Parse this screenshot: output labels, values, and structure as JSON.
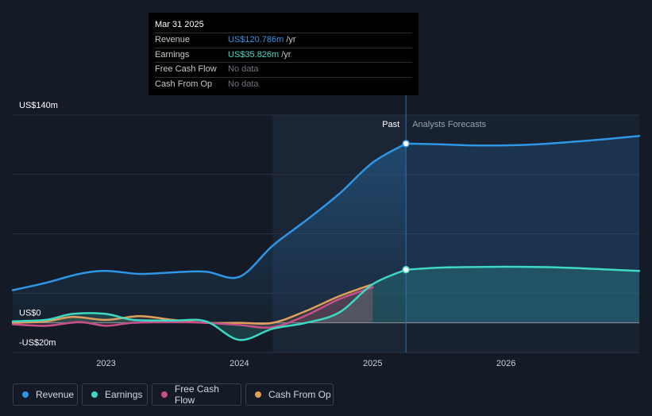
{
  "tooltip": {
    "date": "Mar 31 2025",
    "rows": [
      {
        "label": "Revenue",
        "value": "US$120.786m",
        "unit": "/yr"
      },
      {
        "label": "Earnings",
        "value": "US$35.826m",
        "unit": "/yr"
      },
      {
        "label": "Free Cash Flow",
        "value": "No data"
      },
      {
        "label": "Cash From Op",
        "value": "No data"
      }
    ]
  },
  "labels": {
    "past": "Past",
    "forecast": "Analysts Forecasts"
  },
  "colors": {
    "background": "#151b26",
    "revenue": "#2f96e6",
    "earnings": "#3dd9c5",
    "free_cash_flow": "#c8508a",
    "cash_from_op": "#e0a05a"
  },
  "legend": [
    {
      "label": "Revenue",
      "color": "#2f96e6"
    },
    {
      "label": "Earnings",
      "color": "#3dd9c5"
    },
    {
      "label": "Free Cash Flow",
      "color": "#c8508a"
    },
    {
      "label": "Cash From Op",
      "color": "#e0a05a"
    }
  ],
  "chart_data": {
    "type": "line",
    "y_unit": "US$m",
    "yticks": [
      {
        "value": 140,
        "label": "US$140m"
      },
      {
        "value": 0,
        "label": "US$0"
      },
      {
        "value": -20,
        "label": "-US$20m"
      }
    ],
    "ylim": [
      -20,
      140
    ],
    "xlim": [
      2022.3,
      2027.0
    ],
    "xticks": [
      {
        "value": 2023.0,
        "label": "2023"
      },
      {
        "value": 2024.0,
        "label": "2024"
      },
      {
        "value": 2025.0,
        "label": "2025"
      },
      {
        "value": 2026.0,
        "label": "2026"
      }
    ],
    "past_end": 2025.25,
    "highlight_start": 2024.25,
    "grid": true,
    "series": [
      {
        "name": "Revenue",
        "points": [
          [
            2022.3,
            22
          ],
          [
            2022.55,
            27
          ],
          [
            2022.8,
            33
          ],
          [
            2023.0,
            35
          ],
          [
            2023.25,
            33
          ],
          [
            2023.5,
            34
          ],
          [
            2023.75,
            34.5
          ],
          [
            2024.0,
            31
          ],
          [
            2024.25,
            52
          ],
          [
            2024.5,
            69
          ],
          [
            2024.75,
            87
          ],
          [
            2025.0,
            108
          ],
          [
            2025.25,
            120.786
          ]
        ]
      },
      {
        "name": "Revenue forecast",
        "points": [
          [
            2025.25,
            120.786
          ],
          [
            2025.5,
            120.3
          ],
          [
            2025.75,
            119.6
          ],
          [
            2026.0,
            119.6
          ],
          [
            2026.25,
            120.4
          ],
          [
            2026.5,
            122
          ],
          [
            2026.75,
            123.8
          ],
          [
            2027.0,
            126
          ]
        ]
      },
      {
        "name": "Earnings",
        "points": [
          [
            2022.3,
            1
          ],
          [
            2022.55,
            2
          ],
          [
            2022.75,
            6
          ],
          [
            2023.0,
            6
          ],
          [
            2023.2,
            2
          ],
          [
            2023.5,
            1.5
          ],
          [
            2023.75,
            1
          ],
          [
            2024.0,
            -11.5
          ],
          [
            2024.25,
            -4
          ],
          [
            2024.5,
            0
          ],
          [
            2024.75,
            7
          ],
          [
            2025.0,
            26
          ],
          [
            2025.25,
            35.826
          ]
        ]
      },
      {
        "name": "Earnings forecast",
        "points": [
          [
            2025.25,
            35.826
          ],
          [
            2025.5,
            37.2
          ],
          [
            2025.75,
            37.6
          ],
          [
            2026.0,
            37.8
          ],
          [
            2026.25,
            37.6
          ],
          [
            2026.5,
            37
          ],
          [
            2026.75,
            36
          ],
          [
            2027.0,
            35
          ]
        ]
      },
      {
        "name": "Free Cash Flow",
        "points": [
          [
            2022.3,
            -1
          ],
          [
            2022.55,
            -2
          ],
          [
            2022.8,
            0.5
          ],
          [
            2023.0,
            -2
          ],
          [
            2023.2,
            0
          ],
          [
            2023.5,
            0.5
          ],
          [
            2023.75,
            0
          ],
          [
            2024.0,
            -1.5
          ],
          [
            2024.25,
            -3
          ],
          [
            2024.5,
            5
          ],
          [
            2024.75,
            16
          ],
          [
            2025.0,
            24
          ]
        ]
      },
      {
        "name": "Cash From Op",
        "points": [
          [
            2022.3,
            0
          ],
          [
            2022.55,
            1
          ],
          [
            2022.75,
            4
          ],
          [
            2023.0,
            2
          ],
          [
            2023.25,
            4.5
          ],
          [
            2023.5,
            2
          ],
          [
            2023.75,
            0
          ],
          [
            2024.0,
            0
          ],
          [
            2024.25,
            0
          ],
          [
            2024.5,
            8
          ],
          [
            2024.75,
            18
          ],
          [
            2025.0,
            26
          ]
        ]
      }
    ]
  }
}
